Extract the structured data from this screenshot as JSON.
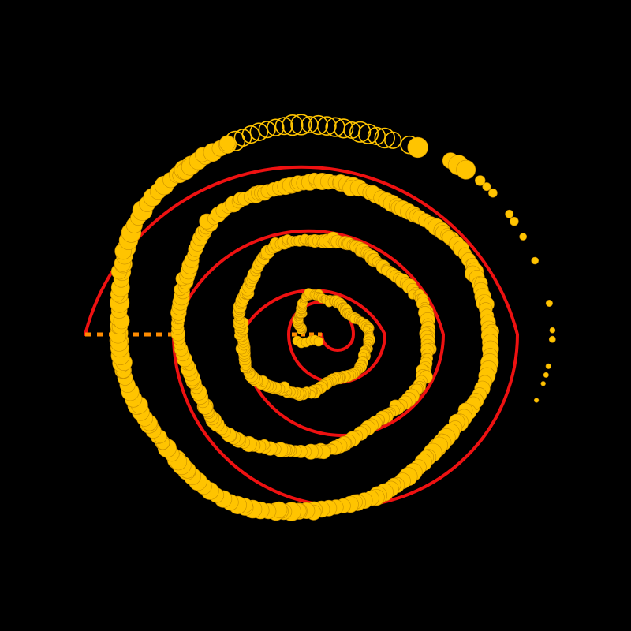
{
  "colors": {
    "background": "#000000",
    "guide_spiral": "#ee1111",
    "dots": "#ffc400",
    "dots_hollow_stroke": "#ffc400",
    "baseline_dash": "#ff8c00"
  },
  "figure": {
    "description_free": true,
    "guide_turns": 3.6,
    "dot_count_filled": 520,
    "dot_count_hollow": 22
  }
}
